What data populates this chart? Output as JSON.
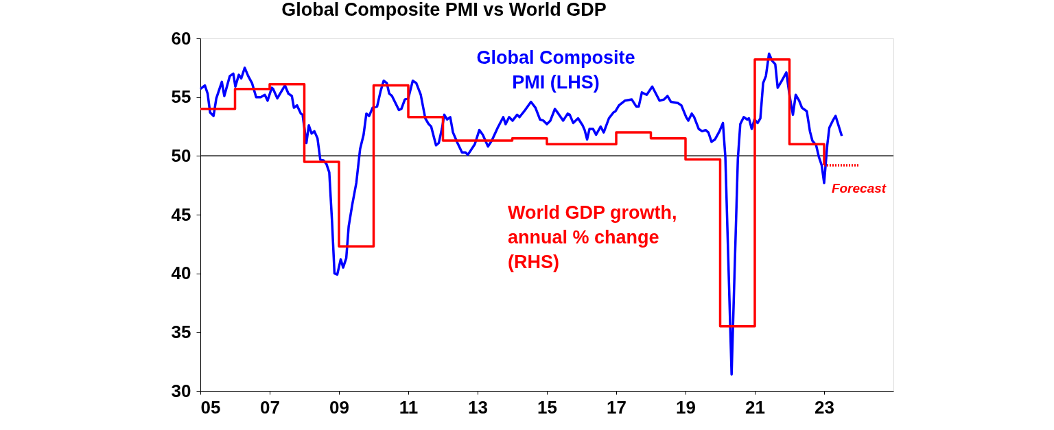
{
  "chart_data": {
    "type": "line",
    "title": "Global Composite PMI vs World GDP",
    "xlim": [
      2005,
      2025
    ],
    "xticks": [
      {
        "value": 2005,
        "label": "05"
      },
      {
        "value": 2007,
        "label": "07"
      },
      {
        "value": 2009,
        "label": "09"
      },
      {
        "value": 2011,
        "label": "11"
      },
      {
        "value": 2013,
        "label": "13"
      },
      {
        "value": 2015,
        "label": "15"
      },
      {
        "value": 2017,
        "label": "17"
      },
      {
        "value": 2019,
        "label": "19"
      },
      {
        "value": 2021,
        "label": "21"
      },
      {
        "value": 2023,
        "label": "23"
      }
    ],
    "ylim": [
      30,
      60
    ],
    "yticks": [
      30,
      35,
      40,
      45,
      50,
      55,
      60
    ],
    "grid": false,
    "ref_lines": [
      {
        "axis": "y",
        "value": 50,
        "color": "#000000"
      }
    ],
    "annotations": [
      {
        "text": "Forecast",
        "x": 2024,
        "y": 49.2
      }
    ],
    "series": [
      {
        "name": "Global Composite\nPMI (LHS)",
        "color": "#0000ff",
        "x": [
          2005.0,
          2005.13,
          2005.21,
          2005.28,
          2005.38,
          2005.46,
          2005.62,
          2005.69,
          2005.85,
          2005.95,
          2006.01,
          2006.11,
          2006.18,
          2006.28,
          2006.38,
          2006.49,
          2006.61,
          2006.74,
          2006.86,
          2006.94,
          2007.06,
          2007.1,
          2007.22,
          2007.44,
          2007.54,
          2007.64,
          2007.7,
          2007.79,
          2007.9,
          2007.95,
          2008.06,
          2008.13,
          2008.21,
          2008.29,
          2008.38,
          2008.46,
          2008.56,
          2008.64,
          2008.72,
          2008.8,
          2008.87,
          2008.95,
          2009.05,
          2009.12,
          2009.21,
          2009.28,
          2009.38,
          2009.5,
          2009.61,
          2009.71,
          2009.79,
          2009.87,
          2009.97,
          2010.1,
          2010.2,
          2010.29,
          2010.38,
          2010.45,
          2010.53,
          2010.73,
          2010.8,
          2010.9,
          2011.0,
          2011.13,
          2011.23,
          2011.36,
          2011.49,
          2011.59,
          2011.66,
          2011.8,
          2011.88,
          2011.97,
          2012.04,
          2012.12,
          2012.21,
          2012.29,
          2012.42,
          2012.55,
          2012.65,
          2012.72,
          2012.92,
          2013.05,
          2013.15,
          2013.3,
          2013.41,
          2013.58,
          2013.74,
          2013.81,
          2013.91,
          2014.01,
          2014.14,
          2014.21,
          2014.37,
          2014.54,
          2014.67,
          2014.8,
          2014.9,
          2015.0,
          2015.1,
          2015.23,
          2015.33,
          2015.47,
          2015.6,
          2015.66,
          2015.76,
          2015.9,
          2016.03,
          2016.09,
          2016.16,
          2016.23,
          2016.33,
          2016.42,
          2016.55,
          2016.64,
          2016.79,
          2016.92,
          2016.98,
          2017.08,
          2017.25,
          2017.45,
          2017.58,
          2017.65,
          2017.74,
          2017.88,
          2018.04,
          2018.25,
          2018.38,
          2018.48,
          2018.58,
          2018.78,
          2018.88,
          2019.02,
          2019.08,
          2019.18,
          2019.25,
          2019.38,
          2019.48,
          2019.58,
          2019.66,
          2019.75,
          2019.85,
          2019.98,
          2020.08,
          2020.15,
          2020.33,
          2020.51,
          2020.58,
          2020.68,
          2020.78,
          2020.83,
          2020.91,
          2020.99,
          2021.08,
          2021.16,
          2021.24,
          2021.32,
          2021.41,
          2021.5,
          2021.59,
          2021.66,
          2021.78,
          2021.91,
          2022.01,
          2022.1,
          2022.18,
          2022.28,
          2022.36,
          2022.5,
          2022.59,
          2022.66,
          2022.77,
          2022.85,
          2022.93,
          2023.0,
          2023.09,
          2023.15,
          2023.25,
          2023.33,
          2023.51
        ],
        "values": [
          55.7,
          56.0,
          55.3,
          53.7,
          53.4,
          54.9,
          56.3,
          55.1,
          56.8,
          57.0,
          55.9,
          56.9,
          56.6,
          57.5,
          56.8,
          56.2,
          55.0,
          55.0,
          55.2,
          54.7,
          55.8,
          55.7,
          54.9,
          56.0,
          55.3,
          55.1,
          54.1,
          54.3,
          53.6,
          53.5,
          51.1,
          52.6,
          51.9,
          52.1,
          51.5,
          49.7,
          49.6,
          49.3,
          48.6,
          44.4,
          40.0,
          39.9,
          41.2,
          40.5,
          41.3,
          44.0,
          45.8,
          47.7,
          50.6,
          51.8,
          53.6,
          53.4,
          54.1,
          54.2,
          55.5,
          56.4,
          56.2,
          55.3,
          55.1,
          53.9,
          54.0,
          54.8,
          54.9,
          56.4,
          56.2,
          55.2,
          53.2,
          52.7,
          52.5,
          50.9,
          51.1,
          52.3,
          53.5,
          53.1,
          53.3,
          52.0,
          51.1,
          50.3,
          50.3,
          50.1,
          51.0,
          52.2,
          51.8,
          50.8,
          51.3,
          52.4,
          53.3,
          52.7,
          53.3,
          53.0,
          53.5,
          53.3,
          53.9,
          54.6,
          54.1,
          53.1,
          53.0,
          52.7,
          53.0,
          54.0,
          53.6,
          53.0,
          53.6,
          53.5,
          52.8,
          53.2,
          52.6,
          52.2,
          51.4,
          52.3,
          52.3,
          51.8,
          52.5,
          52.0,
          53.2,
          53.7,
          53.8,
          54.3,
          54.7,
          54.8,
          54.2,
          54.2,
          55.4,
          55.2,
          55.9,
          54.7,
          54.8,
          55.1,
          54.6,
          54.5,
          54.3,
          53.3,
          53.0,
          53.6,
          53.3,
          52.3,
          52.1,
          52.2,
          52.0,
          51.2,
          51.4,
          52.1,
          52.8,
          49.9,
          31.4,
          49.7,
          52.7,
          53.3,
          53.1,
          53.2,
          52.3,
          53.1,
          52.8,
          53.2,
          56.2,
          56.8,
          58.7,
          58.1,
          57.8,
          55.8,
          56.4,
          57.1,
          55.0,
          53.5,
          55.2,
          54.7,
          54.1,
          53.8,
          52.1,
          51.3,
          50.9,
          49.9,
          49.2,
          47.7,
          50.9,
          52.4,
          53.0,
          53.4,
          51.7
        ]
      },
      {
        "name": "World GDP growth,\nannual % change\n(RHS)",
        "type": "step",
        "color": "#ff0000",
        "x": [
          2005,
          2006,
          2007,
          2008,
          2009,
          2010,
          2011,
          2012,
          2013,
          2014,
          2015,
          2016,
          2017,
          2018,
          2019,
          2020,
          2021,
          2022,
          2023
        ],
        "values": [
          54.0,
          55.7,
          56.1,
          49.5,
          42.3,
          56.0,
          53.3,
          51.3,
          51.3,
          51.5,
          51.0,
          51.0,
          52.0,
          51.5,
          49.7,
          35.5,
          58.2,
          51.0,
          49.2
        ]
      },
      {
        "type": "line",
        "line_style": "dotted",
        "color": "#ff0000",
        "x": [
          2023,
          2024
        ],
        "values": [
          49.2,
          49.2
        ]
      }
    ]
  }
}
